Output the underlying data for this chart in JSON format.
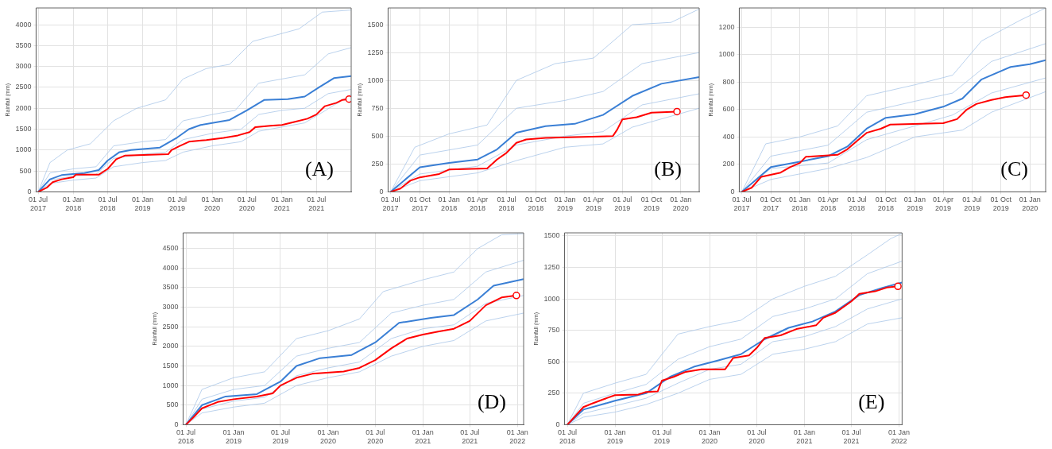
{
  "chart_data": [
    {
      "type": "line",
      "ylabel": "Rainfall (mm)",
      "annotations": [
        "(A)"
      ],
      "grid": true,
      "legend": false,
      "marker": "none",
      "xlim": [
        "2017-06-20",
        "2021-12-31"
      ],
      "ylim": [
        0,
        4400
      ],
      "yticks": [
        0,
        500,
        1000,
        1500,
        2000,
        2500,
        3000,
        3500,
        4000
      ],
      "xticks": [
        {
          "value": "2017-07-01",
          "label": "01 Jul 2017"
        },
        {
          "value": "2018-01-01",
          "label": "01 Jan 2018"
        },
        {
          "value": "2018-07-01",
          "label": "01 Jul 2018"
        },
        {
          "value": "2019-01-01",
          "label": "01 Jan 2019"
        },
        {
          "value": "2019-07-01",
          "label": "01 Jul 2019"
        },
        {
          "value": "2020-01-01",
          "label": "01 Jan 2020"
        },
        {
          "value": "2020-07-01",
          "label": "01 Jul 2020"
        },
        {
          "value": "2021-01-01",
          "label": "01 Jan 2021"
        },
        {
          "value": "2021-07-01",
          "label": "01 Jul 2021"
        }
      ],
      "series": [
        {
          "color": "#a9c6e8",
          "x": [
            "2017-07-01",
            "2017-09-01",
            "2017-12-01",
            "2018-04-01",
            "2018-08-01",
            "2018-12-01",
            "2019-05-01",
            "2019-08-01",
            "2019-12-01",
            "2020-04-01",
            "2020-08-01",
            "2020-12-01",
            "2021-04-01",
            "2021-08-01",
            "2021-12-31"
          ],
          "values": [
            0,
            700,
            1000,
            1150,
            1700,
            2000,
            2200,
            2700,
            2950,
            3050,
            3600,
            3750,
            3900,
            4300,
            4350
          ]
        },
        {
          "color": "#a9c6e8",
          "x": [
            "2017-07-01",
            "2017-09-01",
            "2018-01-01",
            "2018-05-01",
            "2018-08-01",
            "2019-01-01",
            "2019-05-01",
            "2019-08-01",
            "2020-01-01",
            "2020-05-01",
            "2020-09-01",
            "2021-01-01",
            "2021-05-01",
            "2021-09-01",
            "2021-12-31"
          ],
          "values": [
            0,
            450,
            550,
            600,
            1100,
            1200,
            1250,
            1700,
            1850,
            1950,
            2600,
            2700,
            2800,
            3300,
            3450
          ]
        },
        {
          "color": "#a9c6e8",
          "x": [
            "2017-07-01",
            "2017-09-01",
            "2018-01-01",
            "2018-05-01",
            "2018-08-01",
            "2019-01-01",
            "2019-05-01",
            "2019-08-01",
            "2020-01-01",
            "2020-06-01",
            "2020-09-01",
            "2021-01-01",
            "2021-05-01",
            "2021-09-01",
            "2021-12-31"
          ],
          "values": [
            0,
            280,
            380,
            420,
            800,
            900,
            950,
            1250,
            1400,
            1500,
            1850,
            1950,
            2000,
            2350,
            2450
          ]
        },
        {
          "color": "#a9c6e8",
          "x": [
            "2017-07-01",
            "2017-09-01",
            "2018-01-01",
            "2018-05-01",
            "2018-08-01",
            "2019-01-01",
            "2019-05-01",
            "2019-08-01",
            "2020-01-01",
            "2020-06-01",
            "2020-09-01",
            "2021-01-01",
            "2021-05-01",
            "2021-08-01",
            "2021-12-31"
          ],
          "values": [
            0,
            200,
            280,
            330,
            600,
            700,
            750,
            950,
            1100,
            1200,
            1450,
            1550,
            1650,
            1900,
            2330
          ]
        },
        {
          "color": "#3a7fd5",
          "x": [
            "2017-07-01",
            "2017-09-01",
            "2017-11-01",
            "2018-03-01",
            "2018-05-15",
            "2018-07-01",
            "2018-09-01",
            "2018-11-01",
            "2019-04-01",
            "2019-07-01",
            "2019-09-01",
            "2019-11-01",
            "2020-04-01",
            "2020-07-01",
            "2020-10-01",
            "2021-02-01",
            "2021-05-01",
            "2021-07-15",
            "2021-10-01",
            "2021-12-31"
          ],
          "values": [
            0,
            300,
            400,
            450,
            520,
            750,
            950,
            1000,
            1060,
            1300,
            1500,
            1600,
            1720,
            1950,
            2200,
            2220,
            2280,
            2500,
            2720,
            2770
          ]
        },
        {
          "color": "#ff0000",
          "x": [
            "2017-07-01",
            "2017-08-15",
            "2017-09-15",
            "2017-11-01",
            "2018-01-01",
            "2018-01-15",
            "2018-05-15",
            "2018-07-01",
            "2018-08-15",
            "2018-10-01",
            "2019-05-15",
            "2019-06-01",
            "2019-07-15",
            "2019-09-01",
            "2019-12-01",
            "2020-03-01",
            "2020-05-15",
            "2020-07-15",
            "2020-08-15",
            "2020-11-01",
            "2021-01-01",
            "2021-03-15",
            "2021-05-15",
            "2021-07-01",
            "2021-08-15",
            "2021-10-15",
            "2021-11-15",
            "2021-12-20"
          ],
          "values": [
            0,
            100,
            230,
            300,
            350,
            410,
            410,
            550,
            780,
            870,
            900,
            1000,
            1100,
            1200,
            1240,
            1290,
            1350,
            1430,
            1550,
            1580,
            1600,
            1680,
            1750,
            1850,
            2050,
            2130,
            2200,
            2220
          ]
        },
        {
          "type": "scatter",
          "marker": "circle",
          "color": "#ff0000",
          "x": [
            "2021-12-20"
          ],
          "values": [
            2220
          ]
        }
      ]
    },
    {
      "type": "line",
      "ylabel": "Rainfall (mm)",
      "annotations": [
        "(B)"
      ],
      "grid": true,
      "legend": false,
      "marker": "none",
      "xlim": [
        "2017-06-23",
        "2020-02-28"
      ],
      "ylim": [
        0,
        1650
      ],
      "yticks": [
        0,
        250,
        500,
        750,
        1000,
        1250,
        1500
      ],
      "xticks": [
        {
          "value": "2017-07-01",
          "label": "01 Jul 2017"
        },
        {
          "value": "2017-10-01",
          "label": "01 Oct 2017"
        },
        {
          "value": "2018-01-01",
          "label": "01 Jan 2018"
        },
        {
          "value": "2018-04-01",
          "label": "01 Apr 2018"
        },
        {
          "value": "2018-07-01",
          "label": "01 Jul 2018"
        },
        {
          "value": "2018-10-01",
          "label": "01 Oct 2018"
        },
        {
          "value": "2019-01-01",
          "label": "01 Jan 2019"
        },
        {
          "value": "2019-04-01",
          "label": "01 Apr 2019"
        },
        {
          "value": "2019-07-01",
          "label": "01 Jul 2019"
        },
        {
          "value": "2019-10-01",
          "label": "01 Oct 2019"
        },
        {
          "value": "2020-01-01",
          "label": "01 Jan 2020"
        }
      ],
      "series": [
        {
          "color": "#a9c6e8",
          "x": [
            "2017-07-01",
            "2017-09-15",
            "2018-01-01",
            "2018-05-01",
            "2018-08-01",
            "2018-12-01",
            "2019-04-01",
            "2019-08-01",
            "2019-12-01",
            "2020-02-28"
          ],
          "values": [
            0,
            400,
            520,
            600,
            1000,
            1150,
            1200,
            1500,
            1520,
            1640
          ]
        },
        {
          "color": "#a9c6e8",
          "x": [
            "2017-07-01",
            "2017-10-01",
            "2018-04-01",
            "2018-08-01",
            "2019-01-01",
            "2019-05-01",
            "2019-09-01",
            "2020-02-28"
          ],
          "values": [
            0,
            330,
            420,
            750,
            820,
            900,
            1150,
            1250
          ]
        },
        {
          "color": "#a9c6e8",
          "x": [
            "2017-07-01",
            "2017-10-01",
            "2018-04-01",
            "2018-08-01",
            "2019-01-01",
            "2019-05-01",
            "2019-09-01",
            "2020-02-28"
          ],
          "values": [
            0,
            160,
            230,
            420,
            500,
            540,
            780,
            880
          ]
        },
        {
          "color": "#a9c6e8",
          "x": [
            "2017-07-01",
            "2017-10-01",
            "2018-04-01",
            "2018-08-01",
            "2019-01-01",
            "2019-05-01",
            "2019-08-01",
            "2020-02-28"
          ],
          "values": [
            0,
            100,
            170,
            280,
            400,
            430,
            580,
            750
          ]
        },
        {
          "color": "#3a7fd5",
          "x": [
            "2017-07-01",
            "2017-10-01",
            "2018-01-01",
            "2018-04-01",
            "2018-06-01",
            "2018-08-01",
            "2018-11-01",
            "2019-02-01",
            "2019-05-01",
            "2019-08-01",
            "2019-11-01",
            "2020-02-28"
          ],
          "values": [
            0,
            220,
            260,
            290,
            380,
            530,
            590,
            610,
            690,
            860,
            970,
            1030
          ]
        },
        {
          "color": "#ff0000",
          "x": [
            "2017-07-01",
            "2017-08-01",
            "2017-09-01",
            "2017-10-01",
            "2017-12-01",
            "2018-01-01",
            "2018-05-01",
            "2018-06-01",
            "2018-07-01",
            "2018-08-01",
            "2018-09-01",
            "2018-11-01",
            "2019-06-01",
            "2019-06-15",
            "2019-07-01",
            "2019-08-15",
            "2019-10-01",
            "2019-12-20"
          ],
          "values": [
            0,
            30,
            100,
            130,
            160,
            200,
            210,
            290,
            350,
            440,
            470,
            485,
            500,
            560,
            650,
            670,
            710,
            720
          ]
        },
        {
          "type": "scatter",
          "marker": "circle",
          "color": "#ff0000",
          "x": [
            "2019-12-20"
          ],
          "values": [
            720
          ]
        }
      ]
    },
    {
      "type": "line",
      "ylabel": "Rainfall (mm)",
      "annotations": [
        "(C)"
      ],
      "grid": true,
      "legend": false,
      "marker": "none",
      "xlim": [
        "2017-06-23",
        "2020-02-20"
      ],
      "ylim": [
        0,
        1340
      ],
      "yticks": [
        0,
        200,
        400,
        600,
        800,
        1000,
        1200
      ],
      "xticks": [
        {
          "value": "2017-07-01",
          "label": "01 Jul 2017"
        },
        {
          "value": "2017-10-01",
          "label": "01 Oct 2017"
        },
        {
          "value": "2018-01-01",
          "label": "01 Jan 2018"
        },
        {
          "value": "2018-04-01",
          "label": "01 Apr 2018"
        },
        {
          "value": "2018-07-01",
          "label": "01 Jul 2018"
        },
        {
          "value": "2018-10-01",
          "label": "01 Oct 2018"
        },
        {
          "value": "2019-01-01",
          "label": "01 Jan 2019"
        },
        {
          "value": "2019-04-01",
          "label": "01 Apr 2019"
        },
        {
          "value": "2019-07-01",
          "label": "01 Jul 2019"
        },
        {
          "value": "2019-10-01",
          "label": "01 Oct 2019"
        },
        {
          "value": "2020-01-01",
          "label": "01 Jan 2020"
        }
      ],
      "series": [
        {
          "color": "#a9c6e8",
          "x": [
            "2017-07-01",
            "2017-09-15",
            "2018-01-01",
            "2018-05-01",
            "2018-08-01",
            "2019-01-01",
            "2019-05-01",
            "2019-08-01",
            "2019-12-01",
            "2020-02-20"
          ],
          "values": [
            0,
            350,
            400,
            480,
            700,
            780,
            850,
            1100,
            1250,
            1340
          ]
        },
        {
          "color": "#a9c6e8",
          "x": [
            "2017-07-01",
            "2017-10-01",
            "2018-04-01",
            "2018-08-01",
            "2019-01-01",
            "2019-05-01",
            "2019-09-01",
            "2020-02-20"
          ],
          "values": [
            0,
            260,
            340,
            580,
            660,
            720,
            950,
            1080
          ]
        },
        {
          "color": "#a9c6e8",
          "x": [
            "2017-07-01",
            "2017-10-01",
            "2018-04-01",
            "2018-08-01",
            "2019-01-01",
            "2019-05-01",
            "2019-09-01",
            "2020-02-20"
          ],
          "values": [
            0,
            170,
            210,
            380,
            480,
            560,
            720,
            830
          ]
        },
        {
          "color": "#a9c6e8",
          "x": [
            "2017-07-01",
            "2017-10-01",
            "2018-04-01",
            "2018-08-01",
            "2019-01-01",
            "2019-06-01",
            "2019-09-01",
            "2020-02-20"
          ],
          "values": [
            0,
            90,
            170,
            250,
            400,
            450,
            580,
            730
          ]
        },
        {
          "color": "#3a7fd5",
          "x": [
            "2017-07-01",
            "2017-10-01",
            "2018-01-01",
            "2018-04-01",
            "2018-06-01",
            "2018-08-01",
            "2018-10-01",
            "2019-01-01",
            "2019-04-01",
            "2019-06-01",
            "2019-08-01",
            "2019-11-01",
            "2020-01-01",
            "2020-02-20"
          ],
          "values": [
            0,
            180,
            220,
            260,
            330,
            460,
            540,
            565,
            620,
            680,
            820,
            910,
            930,
            960
          ]
        },
        {
          "color": "#ff0000",
          "x": [
            "2017-07-01",
            "2017-08-01",
            "2017-09-01",
            "2017-11-01",
            "2017-12-01",
            "2018-01-01",
            "2018-01-20",
            "2018-05-01",
            "2018-06-01",
            "2018-07-01",
            "2018-08-01",
            "2018-09-15",
            "2018-10-15",
            "2019-04-01",
            "2019-05-15",
            "2019-06-15",
            "2019-07-15",
            "2019-09-01",
            "2019-10-15",
            "2019-12-20"
          ],
          "values": [
            0,
            30,
            110,
            140,
            180,
            210,
            255,
            270,
            310,
            370,
            430,
            460,
            490,
            500,
            530,
            600,
            640,
            670,
            690,
            705
          ]
        },
        {
          "type": "scatter",
          "marker": "circle",
          "color": "#ff0000",
          "x": [
            "2019-12-20"
          ],
          "values": [
            705
          ]
        }
      ]
    },
    {
      "type": "line",
      "ylabel": "Rainfall (mm)",
      "annotations": [
        "(D)"
      ],
      "grid": true,
      "legend": false,
      "marker": "none",
      "xlim": [
        "2018-06-20",
        "2022-01-25"
      ],
      "ylim": [
        0,
        4900
      ],
      "yticks": [
        0,
        500,
        1000,
        1500,
        2000,
        2500,
        3000,
        3500,
        4000,
        4500
      ],
      "xticks": [
        {
          "value": "2018-07-01",
          "label": "01 Jul 2018"
        },
        {
          "value": "2019-01-01",
          "label": "01 Jan 2019"
        },
        {
          "value": "2019-07-01",
          "label": "01 Jul 2019"
        },
        {
          "value": "2020-01-01",
          "label": "01 Jan 2020"
        },
        {
          "value": "2020-07-01",
          "label": "01 Jul 2020"
        },
        {
          "value": "2021-01-01",
          "label": "01 Jan 2021"
        },
        {
          "value": "2021-07-01",
          "label": "01 Jul 2021"
        },
        {
          "value": "2022-01-01",
          "label": "01 Jan 2022"
        }
      ],
      "series": [
        {
          "color": "#a9c6e8",
          "x": [
            "2018-07-01",
            "2018-09-01",
            "2019-01-01",
            "2019-05-01",
            "2019-09-01",
            "2020-01-01",
            "2020-05-01",
            "2020-08-01",
            "2021-01-01",
            "2021-05-01",
            "2021-08-01",
            "2021-11-01",
            "2022-01-25"
          ],
          "values": [
            0,
            900,
            1200,
            1350,
            2200,
            2400,
            2700,
            3400,
            3700,
            3900,
            4500,
            4850,
            4880
          ]
        },
        {
          "color": "#a9c6e8",
          "x": [
            "2018-07-01",
            "2018-09-01",
            "2019-01-01",
            "2019-05-01",
            "2019-09-01",
            "2020-01-01",
            "2020-05-01",
            "2020-09-01",
            "2021-01-01",
            "2021-05-01",
            "2021-09-01",
            "2022-01-25"
          ],
          "values": [
            0,
            650,
            900,
            1000,
            1750,
            1950,
            2100,
            2850,
            3050,
            3200,
            3900,
            4200
          ]
        },
        {
          "color": "#a9c6e8",
          "x": [
            "2018-07-01",
            "2018-09-01",
            "2019-01-01",
            "2019-05-01",
            "2019-09-01",
            "2020-01-01",
            "2020-05-01",
            "2020-09-01",
            "2021-01-01",
            "2021-05-01",
            "2021-09-01",
            "2022-01-25"
          ],
          "values": [
            0,
            400,
            600,
            700,
            1250,
            1450,
            1600,
            2200,
            2450,
            2550,
            3100,
            3300
          ]
        },
        {
          "color": "#a9c6e8",
          "x": [
            "2018-07-01",
            "2018-09-01",
            "2019-01-01",
            "2019-05-01",
            "2019-09-01",
            "2020-01-01",
            "2020-05-01",
            "2020-09-01",
            "2021-01-01",
            "2021-05-01",
            "2021-09-01",
            "2022-01-25"
          ],
          "values": [
            0,
            300,
            450,
            550,
            1000,
            1200,
            1350,
            1750,
            2000,
            2150,
            2650,
            2850
          ]
        },
        {
          "color": "#3a7fd5",
          "x": [
            "2018-07-01",
            "2018-09-01",
            "2018-12-01",
            "2019-04-01",
            "2019-07-01",
            "2019-09-01",
            "2019-12-01",
            "2020-04-01",
            "2020-07-01",
            "2020-10-01",
            "2021-02-01",
            "2021-05-01",
            "2021-08-01",
            "2021-10-01",
            "2022-01-25"
          ],
          "values": [
            0,
            500,
            720,
            780,
            1100,
            1500,
            1700,
            1780,
            2100,
            2600,
            2730,
            2800,
            3200,
            3550,
            3720
          ]
        },
        {
          "color": "#ff0000",
          "x": [
            "2018-07-01",
            "2018-08-01",
            "2018-09-01",
            "2018-11-01",
            "2019-01-01",
            "2019-04-01",
            "2019-06-01",
            "2019-07-01",
            "2019-09-01",
            "2019-11-01",
            "2020-03-01",
            "2020-05-01",
            "2020-07-01",
            "2020-09-01",
            "2020-11-01",
            "2021-01-01",
            "2021-03-01",
            "2021-05-01",
            "2021-07-01",
            "2021-09-01",
            "2021-11-01",
            "2021-12-28"
          ],
          "values": [
            0,
            200,
            420,
            580,
            650,
            720,
            800,
            1000,
            1200,
            1300,
            1360,
            1450,
            1650,
            1950,
            2200,
            2300,
            2380,
            2450,
            2650,
            3050,
            3250,
            3300
          ]
        },
        {
          "type": "scatter",
          "marker": "circle",
          "color": "#ff0000",
          "x": [
            "2021-12-28"
          ],
          "values": [
            3300
          ]
        }
      ]
    },
    {
      "type": "line",
      "ylabel": "Rainfall (mm)",
      "annotations": [
        "(E)"
      ],
      "grid": true,
      "legend": false,
      "marker": "none",
      "xlim": [
        "2018-06-20",
        "2022-01-13"
      ],
      "ylim": [
        0,
        1525
      ],
      "yticks": [
        0,
        250,
        500,
        750,
        1000,
        1250,
        1500
      ],
      "xticks": [
        {
          "value": "2018-07-01",
          "label": "01 Jul 2018"
        },
        {
          "value": "2019-01-01",
          "label": "01 Jan 2019"
        },
        {
          "value": "2019-07-01",
          "label": "01 Jul 2019"
        },
        {
          "value": "2020-01-01",
          "label": "01 Jan 2020"
        },
        {
          "value": "2020-07-01",
          "label": "01 Jul 2020"
        },
        {
          "value": "2021-01-01",
          "label": "01 Jan 2021"
        },
        {
          "value": "2021-07-01",
          "label": "01 Jul 2021"
        },
        {
          "value": "2022-01-01",
          "label": "01 Jan 2022"
        }
      ],
      "series": [
        {
          "color": "#a9c6e8",
          "x": [
            "2018-07-01",
            "2018-09-01",
            "2019-01-01",
            "2019-05-01",
            "2019-09-01",
            "2020-01-01",
            "2020-05-01",
            "2020-09-01",
            "2021-01-01",
            "2021-05-01",
            "2021-09-01",
            "2021-12-01",
            "2022-01-13"
          ],
          "values": [
            0,
            250,
            330,
            400,
            720,
            780,
            830,
            1000,
            1100,
            1180,
            1350,
            1480,
            1520
          ]
        },
        {
          "color": "#a9c6e8",
          "x": [
            "2018-07-01",
            "2018-09-01",
            "2019-01-01",
            "2019-05-01",
            "2019-09-01",
            "2020-01-01",
            "2020-05-01",
            "2020-09-01",
            "2021-01-01",
            "2021-05-01",
            "2021-09-01",
            "2022-01-13"
          ],
          "values": [
            0,
            170,
            250,
            320,
            520,
            620,
            680,
            860,
            920,
            1000,
            1200,
            1300
          ]
        },
        {
          "color": "#a9c6e8",
          "x": [
            "2018-07-01",
            "2018-09-01",
            "2019-01-01",
            "2019-05-01",
            "2019-09-01",
            "2020-01-01",
            "2020-05-01",
            "2020-09-01",
            "2021-01-01",
            "2021-05-01",
            "2021-09-01",
            "2022-01-13"
          ],
          "values": [
            0,
            90,
            150,
            210,
            330,
            440,
            480,
            660,
            700,
            780,
            920,
            1000
          ]
        },
        {
          "color": "#a9c6e8",
          "x": [
            "2018-07-01",
            "2018-09-01",
            "2019-01-01",
            "2019-05-01",
            "2019-09-01",
            "2020-01-01",
            "2020-05-01",
            "2020-09-01",
            "2021-01-01",
            "2021-05-01",
            "2021-09-01",
            "2022-01-13"
          ],
          "values": [
            0,
            60,
            100,
            160,
            250,
            360,
            400,
            560,
            600,
            660,
            800,
            850
          ]
        },
        {
          "color": "#3a7fd5",
          "x": [
            "2018-07-01",
            "2018-09-01",
            "2019-01-01",
            "2019-05-01",
            "2019-08-01",
            "2019-11-01",
            "2020-02-01",
            "2020-05-01",
            "2020-08-01",
            "2020-11-01",
            "2021-02-01",
            "2021-05-01",
            "2021-08-01",
            "2021-11-01",
            "2022-01-13"
          ],
          "values": [
            0,
            120,
            190,
            250,
            380,
            460,
            510,
            560,
            680,
            770,
            820,
            900,
            1030,
            1090,
            1130
          ]
        },
        {
          "color": "#ff0000",
          "x": [
            "2018-07-01",
            "2018-07-15",
            "2018-08-01",
            "2018-09-01",
            "2018-10-01",
            "2018-11-15",
            "2019-01-01",
            "2019-04-01",
            "2019-05-01",
            "2019-06-15",
            "2019-07-01",
            "2019-08-15",
            "2019-10-01",
            "2019-12-01",
            "2020-03-01",
            "2020-04-01",
            "2020-06-01",
            "2020-07-01",
            "2020-08-01",
            "2020-10-01",
            "2020-12-01",
            "2021-02-15",
            "2021-03-15",
            "2021-05-01",
            "2021-07-01",
            "2021-08-01",
            "2021-10-01",
            "2021-11-15",
            "2021-12-28"
          ],
          "values": [
            0,
            30,
            70,
            140,
            165,
            200,
            235,
            240,
            260,
            265,
            350,
            380,
            420,
            440,
            440,
            530,
            550,
            610,
            690,
            710,
            760,
            790,
            850,
            890,
            980,
            1040,
            1060,
            1090,
            1100
          ]
        },
        {
          "type": "scatter",
          "marker": "circle",
          "color": "#ff0000",
          "x": [
            "2021-12-28"
          ],
          "values": [
            1100
          ]
        }
      ]
    }
  ]
}
